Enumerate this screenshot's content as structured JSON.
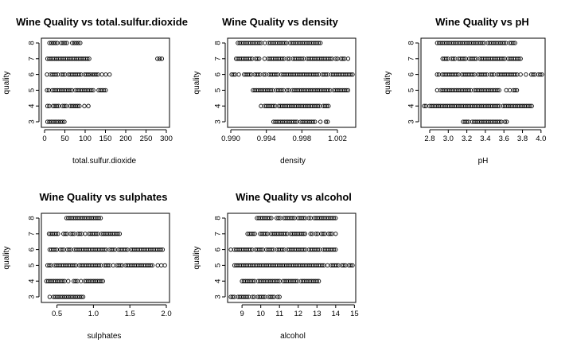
{
  "chart_data": [
    {
      "type": "scatter",
      "title": "Wine Quality vs  total.sulfur.dioxide",
      "xlabel": "total.sulfur.dioxide",
      "ylabel": "quality",
      "xlim": [
        0,
        300
      ],
      "ylim": [
        3,
        8
      ],
      "xticks": [
        "0",
        "50",
        "100",
        "150",
        "200",
        "250",
        "300"
      ],
      "yticks": [
        "3",
        "4",
        "5",
        "6",
        "7",
        "8"
      ],
      "ranges": [
        {
          "y": 3,
          "segments": [
            [
              7,
              49
            ]
          ]
        },
        {
          "y": 4,
          "segments": [
            [
              7,
              86
            ],
            [
              98,
              108
            ]
          ]
        },
        {
          "y": 5,
          "segments": [
            [
              6,
              155
            ]
          ]
        },
        {
          "y": 6,
          "segments": [
            [
              6,
              112
            ],
            [
              113,
              165
            ]
          ]
        },
        {
          "y": 7,
          "segments": [
            [
              7,
              110
            ],
            [
              278,
              289
            ]
          ]
        },
        {
          "y": 8,
          "segments": [
            [
              12,
              55
            ],
            [
              68,
              88
            ]
          ]
        }
      ],
      "points": []
    },
    {
      "type": "scatter",
      "title": "Wine Quality vs  density",
      "xlabel": "density",
      "ylabel": "quality",
      "xlim": [
        0.99,
        1.0037
      ],
      "ylim": [
        3,
        8
      ],
      "xticks": [
        "0.990",
        "0.994",
        "0.998",
        "1.002"
      ],
      "yticks": [
        "3",
        "4",
        "5",
        "6",
        "7",
        "8"
      ],
      "ranges": [
        {
          "y": 3,
          "segments": [
            [
              0.9946,
              1.0009
            ]
          ]
        },
        {
          "y": 4,
          "segments": [
            [
              0.9934,
              1.001
            ]
          ]
        },
        {
          "y": 5,
          "segments": [
            [
              0.9925,
              1.0032
            ]
          ]
        },
        {
          "y": 6,
          "segments": [
            [
              0.9901,
              1.0037
            ]
          ]
        },
        {
          "y": 7,
          "segments": [
            [
              0.9906,
              1.0032
            ]
          ]
        },
        {
          "y": 8,
          "segments": [
            [
              0.9908,
              1.0001
            ]
          ]
        }
      ],
      "points": []
    },
    {
      "type": "scatter",
      "title": "Wine Quality vs  pH",
      "xlabel": "pH",
      "ylabel": "quality",
      "xlim": [
        2.74,
        4.01
      ],
      "ylim": [
        3,
        8
      ],
      "xticks": [
        "2.8",
        "3.0",
        "3.2",
        "3.4",
        "3.6",
        "3.8",
        "4.0"
      ],
      "yticks": [
        "3",
        "4",
        "5",
        "6",
        "7",
        "8"
      ],
      "ranges": [
        {
          "y": 3,
          "segments": [
            [
              3.16,
              3.63
            ]
          ]
        },
        {
          "y": 4,
          "segments": [
            [
              2.74,
              3.9
            ]
          ]
        },
        {
          "y": 5,
          "segments": [
            [
              2.88,
              3.74
            ]
          ]
        },
        {
          "y": 6,
          "segments": [
            [
              2.86,
              4.01
            ]
          ]
        },
        {
          "y": 7,
          "segments": [
            [
              2.92,
              3.78
            ]
          ]
        },
        {
          "y": 8,
          "segments": [
            [
              2.88,
              3.72
            ]
          ]
        }
      ],
      "points": []
    },
    {
      "type": "scatter",
      "title": "Wine Quality vs  sulphates",
      "xlabel": "sulphates",
      "ylabel": "quality",
      "xlim": [
        0.33,
        2.0
      ],
      "ylim": [
        3,
        8
      ],
      "xticks": [
        "0.5",
        "1.0",
        "1.5",
        "2.0"
      ],
      "yticks": [
        "3",
        "4",
        "5",
        "6",
        "7",
        "8"
      ],
      "ranges": [
        {
          "y": 3,
          "segments": [
            [
              0.4,
              0.86
            ]
          ]
        },
        {
          "y": 4,
          "segments": [
            [
              0.33,
              1.13
            ]
          ]
        },
        {
          "y": 5,
          "segments": [
            [
              0.37,
              1.98
            ]
          ]
        },
        {
          "y": 6,
          "segments": [
            [
              0.4,
              1.95
            ]
          ]
        },
        {
          "y": 7,
          "segments": [
            [
              0.39,
              1.36
            ]
          ]
        },
        {
          "y": 8,
          "segments": [
            [
              0.63,
              1.1
            ]
          ]
        }
      ],
      "points": []
    },
    {
      "type": "scatter",
      "title": "Wine Quality vs  alcohol",
      "xlabel": "alcohol",
      "ylabel": "quality",
      "xlim": [
        8.4,
        14.9
      ],
      "ylim": [
        3,
        8
      ],
      "xticks": [
        "9",
        "10",
        "11",
        "12",
        "13",
        "14",
        "15"
      ],
      "yticks": [
        "3",
        "4",
        "5",
        "6",
        "7",
        "8"
      ],
      "ranges": [
        {
          "y": 3,
          "segments": [
            [
              8.4,
              11.0
            ]
          ]
        },
        {
          "y": 4,
          "segments": [
            [
              9.0,
              13.1
            ]
          ]
        },
        {
          "y": 5,
          "segments": [
            [
              8.5,
              14.9
            ]
          ]
        },
        {
          "y": 6,
          "segments": [
            [
              8.4,
              14.0
            ]
          ]
        },
        {
          "y": 7,
          "segments": [
            [
              9.2,
              14.0
            ]
          ]
        },
        {
          "y": 8,
          "segments": [
            [
              9.8,
              14.0
            ]
          ]
        }
      ],
      "points": []
    }
  ]
}
